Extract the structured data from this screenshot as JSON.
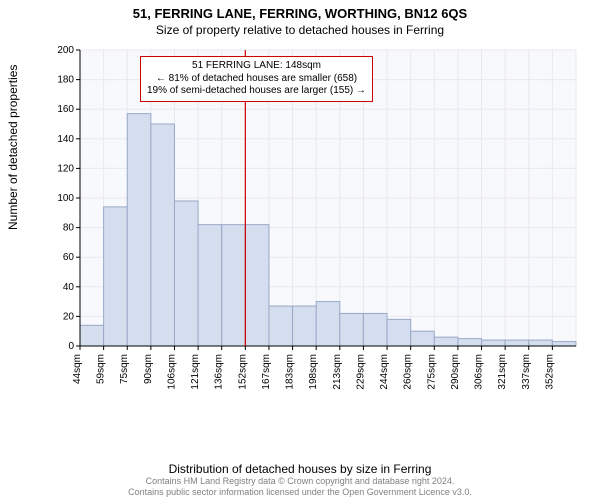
{
  "title_main": "51, FERRING LANE, FERRING, WORTHING, BN12 6QS",
  "title_sub": "Size of property relative to detached houses in Ferring",
  "ylabel": "Number of detached properties",
  "xlabel": "Distribution of detached houses by size in Ferring",
  "footer_line1": "Contains HM Land Registry data © Crown copyright and database right 2024.",
  "footer_line2": "Contains public sector information licensed under the Open Government Licence v3.0.",
  "chart": {
    "type": "histogram",
    "background_color": "#f7f9fc",
    "grid_color": "#e8e8ee",
    "axis_color": "#000000",
    "bar_fill": "#d4deef",
    "bar_stroke": "#9aa8c7",
    "marker_line_color": "#cc0000",
    "ylim": [
      0,
      200
    ],
    "ytick_step": 20,
    "x_ticks": [
      "44sqm",
      "59sqm",
      "75sqm",
      "90sqm",
      "106sqm",
      "121sqm",
      "136sqm",
      "152sqm",
      "167sqm",
      "183sqm",
      "198sqm",
      "213sqm",
      "229sqm",
      "244sqm",
      "260sqm",
      "275sqm",
      "290sqm",
      "306sqm",
      "321sqm",
      "337sqm",
      "352sqm"
    ],
    "bar_values": [
      14,
      94,
      157,
      150,
      98,
      82,
      82,
      82,
      27,
      27,
      30,
      22,
      22,
      18,
      10,
      6,
      5,
      4,
      4,
      4,
      3
    ],
    "marker_bin_index": 7,
    "callout": {
      "line1": "51 FERRING LANE: 148sqm",
      "line2": "← 81% of detached houses are smaller (658)",
      "line3": "19% of semi-detached houses are larger (155) →",
      "border_color": "#cc0000"
    },
    "label_fontsize": 10,
    "axis_fontsize": 12,
    "title_fontsize": 13
  }
}
